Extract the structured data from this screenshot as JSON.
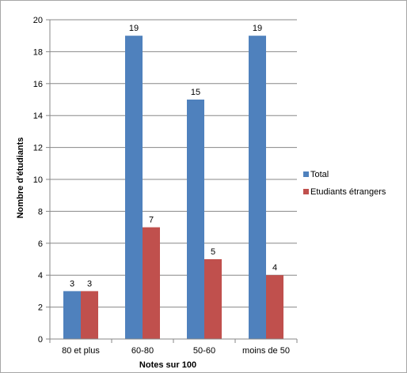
{
  "chart_data": {
    "type": "bar",
    "categories": [
      "80 et plus",
      "60-80",
      "50-60",
      "moins de 50"
    ],
    "series": [
      {
        "name": "Total",
        "values": [
          3,
          19,
          15,
          19
        ],
        "color": "#4f81bd"
      },
      {
        "name": "Etudiants étrangers",
        "values": [
          3,
          7,
          5,
          4
        ],
        "color": "#c0504d"
      }
    ],
    "xlabel": "Notes sur 100",
    "ylabel": "Nombre d'étudiants",
    "ylim": [
      0,
      20
    ],
    "yticks": [
      0,
      2,
      4,
      6,
      8,
      10,
      12,
      14,
      16,
      18,
      20
    ],
    "grid": true,
    "legend": "right"
  }
}
